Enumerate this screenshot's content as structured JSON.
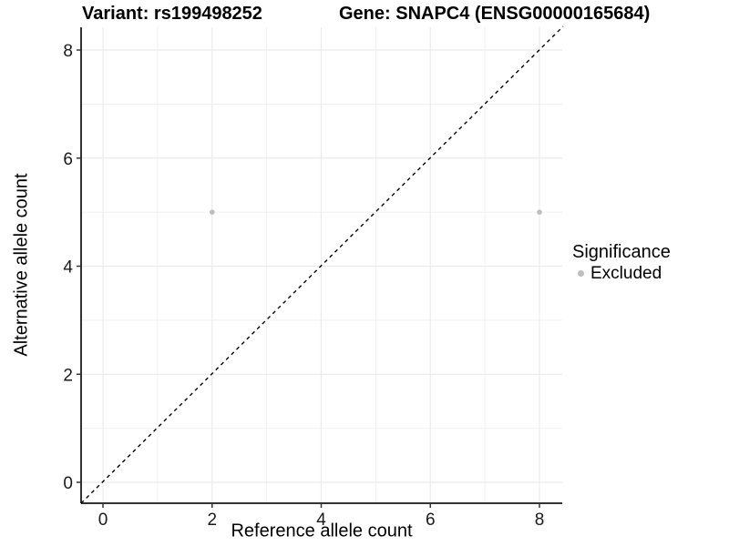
{
  "header": {
    "variant_title": "Variant: rs199498252",
    "gene_title": "Gene: SNAPC4 (ENSG00000165684)"
  },
  "chart_data": {
    "type": "scatter",
    "title": "Variant: rs199498252   Gene: SNAPC4 (ENSG00000165684)",
    "xlabel": "Reference allele count",
    "ylabel": "Alternative allele count",
    "xlim": [
      -0.4,
      8.4
    ],
    "ylim": [
      -0.4,
      8.4
    ],
    "x_ticks": [
      0,
      2,
      4,
      6,
      8
    ],
    "y_ticks": [
      0,
      2,
      4,
      6,
      8
    ],
    "x_minor_gridlines": [
      1,
      3,
      5,
      7
    ],
    "y_minor_gridlines": [
      1,
      3,
      5,
      7
    ],
    "grid": true,
    "series": [
      {
        "name": "Excluded",
        "marker": "circle",
        "color": "#bebebe",
        "points": [
          {
            "x": 2,
            "y": 5
          },
          {
            "x": 8,
            "y": 5
          }
        ]
      }
    ],
    "reference_line": {
      "kind": "identity",
      "equation": "y = x",
      "style": "dashed",
      "color": "#000000"
    },
    "legend": {
      "title": "Significance",
      "position": "right",
      "items": [
        {
          "label": "Excluded",
          "color": "#bebebe",
          "marker": "circle"
        }
      ]
    }
  },
  "colors": {
    "background": "#ffffff",
    "grid_major": "#ebebeb",
    "grid_minor": "#f0f0f0",
    "axis_line": "#333333",
    "tick_label": "#1a1a1a",
    "point": "#bebebe",
    "text": "#000000"
  }
}
